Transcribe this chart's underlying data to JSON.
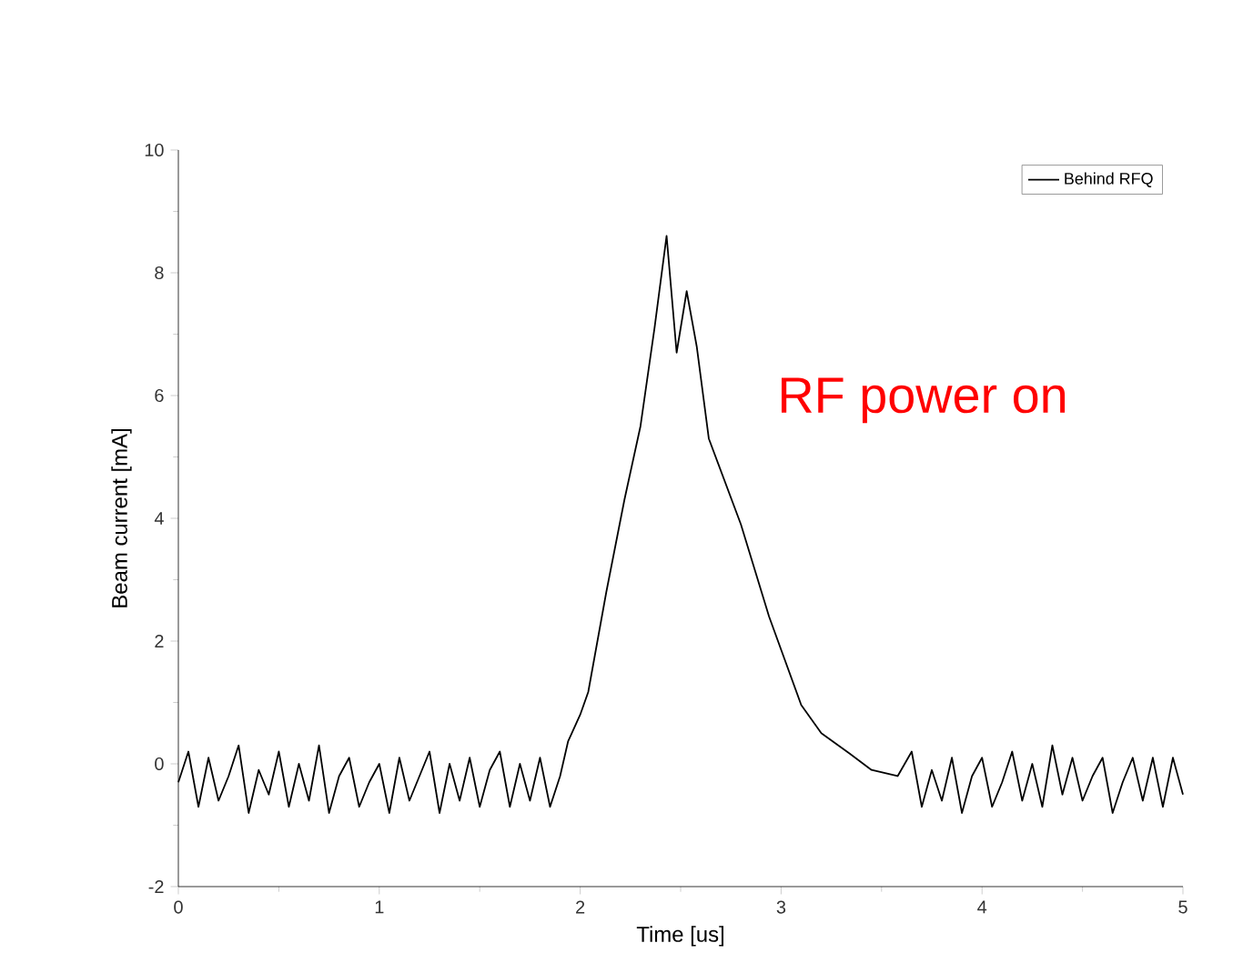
{
  "chart_data": {
    "type": "line",
    "xlabel": "Time [us]",
    "ylabel": "Beam current [mA]",
    "annotations": [
      "RF power on"
    ],
    "xlim": [
      0,
      5
    ],
    "ylim": [
      -2,
      10
    ],
    "xticks": [
      0,
      1,
      2,
      3,
      4,
      5
    ],
    "yticks": [
      -2,
      0,
      2,
      4,
      6,
      8,
      10
    ],
    "grid": false,
    "legend": "top right",
    "marker": "none",
    "line_style": "solid",
    "series": [
      {
        "name": "Behind RFQ",
        "color": "#000000",
        "x": [
          0,
          0.05,
          0.1,
          0.15,
          0.2,
          0.25,
          0.3,
          0.35,
          0.4,
          0.45,
          0.5,
          0.55,
          0.6,
          0.65,
          0.7,
          0.75,
          0.8,
          0.85,
          0.9,
          0.95,
          1.0,
          1.05,
          1.1,
          1.15,
          1.2,
          1.25,
          1.3,
          1.35,
          1.4,
          1.45,
          1.5,
          1.55,
          1.6,
          1.65,
          1.7,
          1.75,
          1.8,
          1.85,
          1.9,
          1.94,
          2.0,
          2.04,
          2.13,
          2.22,
          2.3,
          2.37,
          2.43,
          2.48,
          2.53,
          2.58,
          2.64,
          2.72,
          2.8,
          2.94,
          3.1,
          3.2,
          3.34,
          3.45,
          3.58,
          3.65,
          3.7,
          3.75,
          3.8,
          3.85,
          3.9,
          3.95,
          4.0,
          4.05,
          4.1,
          4.15,
          4.2,
          4.25,
          4.3,
          4.35,
          4.4,
          4.45,
          4.5,
          4.55,
          4.6,
          4.65,
          4.7,
          4.75,
          4.8,
          4.85,
          4.9,
          4.95,
          5.0
        ],
        "values": [
          -0.3,
          0.2,
          -0.7,
          0.1,
          -0.6,
          -0.2,
          0.3,
          -0.8,
          -0.1,
          -0.5,
          0.2,
          -0.7,
          0.0,
          -0.6,
          0.3,
          -0.8,
          -0.2,
          0.1,
          -0.7,
          -0.3,
          0.0,
          -0.8,
          0.1,
          -0.6,
          -0.2,
          0.2,
          -0.8,
          0.0,
          -0.6,
          0.1,
          -0.7,
          -0.1,
          0.2,
          -0.7,
          0.0,
          -0.6,
          0.1,
          -0.7,
          -0.2,
          0.37,
          0.8,
          1.17,
          2.8,
          4.3,
          5.5,
          7.1,
          8.6,
          6.7,
          7.7,
          6.8,
          5.3,
          4.6,
          3.9,
          2.4,
          0.96,
          0.5,
          0.17,
          -0.1,
          -0.2,
          0.2,
          -0.7,
          -0.1,
          -0.6,
          0.1,
          -0.8,
          -0.2,
          0.1,
          -0.7,
          -0.3,
          0.2,
          -0.6,
          0.0,
          -0.7,
          0.3,
          -0.5,
          0.1,
          -0.6,
          -0.2,
          0.1,
          -0.8,
          -0.3,
          0.1,
          -0.6,
          0.1,
          -0.7,
          0.1,
          -0.5
        ]
      }
    ]
  }
}
